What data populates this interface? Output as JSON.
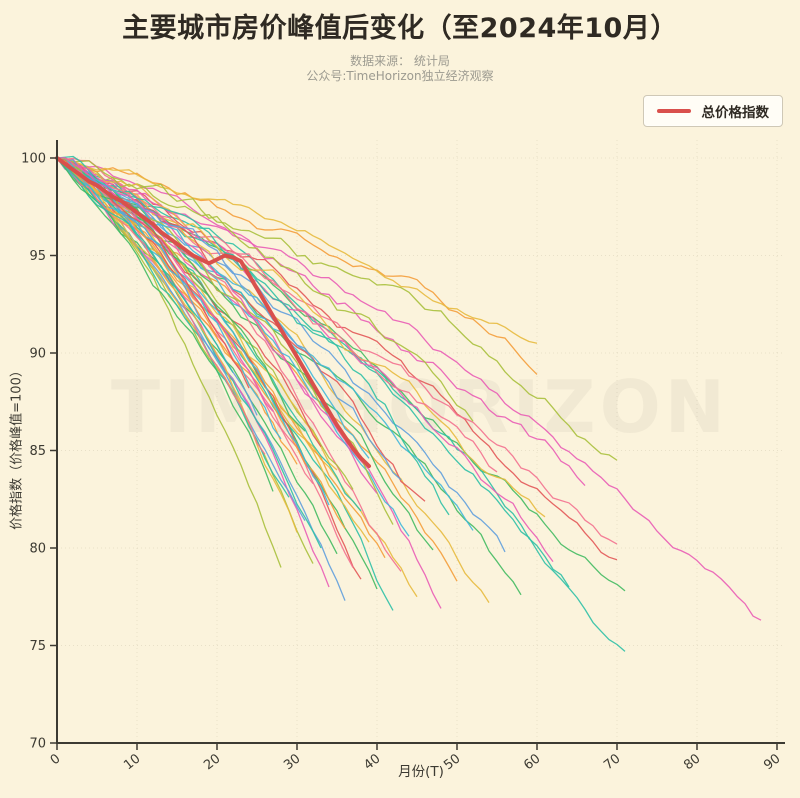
{
  "title": "主要城市房价峰值后变化（至2024年10月）",
  "subtitle_line1": "数据来源： 统计局",
  "subtitle_line2": "公众号:TimeHorizon独立经济观察",
  "watermark": "TIMEHORIZON",
  "legend": {
    "label": "总价格指数"
  },
  "colors": {
    "background": "#fbf3dc",
    "title": "#2f2a23",
    "subtitle": "#9c9a90",
    "axis": "#3c3a32",
    "grid": "#6b6147",
    "main_line": "#d9504c",
    "legend_bg": "#fffdf6",
    "legend_border": "#cfc8b6",
    "watermark": "#3c3a32"
  },
  "chart_data": {
    "type": "line",
    "title": "主要城市房价峰值后变化（至2024年10月）",
    "xlabel": "月份(T)",
    "ylabel": "价格指数（价格峰值=100）",
    "xlim": [
      0,
      90
    ],
    "ylim": [
      70,
      100
    ],
    "xticks": [
      0,
      10,
      20,
      30,
      40,
      50,
      60,
      70,
      80,
      90
    ],
    "yticks": [
      70,
      75,
      80,
      85,
      90,
      95,
      100
    ],
    "grid": true,
    "legend_position": "top-right",
    "main_series": {
      "name": "总价格指数",
      "color": "#d9504c",
      "width": 4,
      "x": [
        0,
        1,
        2,
        3,
        4,
        5,
        6,
        7,
        8,
        9,
        10,
        11,
        12,
        13,
        14,
        15,
        16,
        17,
        18,
        19,
        20,
        21,
        22,
        23,
        24,
        25,
        26,
        27,
        28,
        29,
        30,
        31,
        32,
        33,
        34,
        35,
        36,
        37,
        38,
        39
      ],
      "y": [
        100,
        99.7,
        99.4,
        99.1,
        98.8,
        98.6,
        98.3,
        98.0,
        97.8,
        97.5,
        97.2,
        96.9,
        96.6,
        96.2,
        95.9,
        95.6,
        95.3,
        95.0,
        94.8,
        94.6,
        94.8,
        95.0,
        94.9,
        94.7,
        94.0,
        93.3,
        92.6,
        91.9,
        91.2,
        90.5,
        89.8,
        89.1,
        88.4,
        87.7,
        87.0,
        86.3,
        85.7,
        85.1,
        84.6,
        84.2
      ]
    },
    "city_lines": {
      "description": "Unlabeled per-city price-index curves; each starts at (0,100) and declines with noise to (months, end).",
      "palette": [
        "#e25757",
        "#f49d3a",
        "#e7ba3e",
        "#a9c03c",
        "#41ba60",
        "#2dc0a6",
        "#41b7da",
        "#5f9fdd",
        "#e95cb5",
        "#f3718f"
      ],
      "line_width": 1.3,
      "opacity": 0.9,
      "lines": [
        {
          "s": 11,
          "m": 88,
          "e": 76.3,
          "c": 8,
          "n": 0.45
        },
        {
          "s": 12,
          "m": 71,
          "e": 74.7,
          "c": 5,
          "n": 0.5
        },
        {
          "s": 13,
          "m": 71,
          "e": 77.8,
          "c": 4,
          "n": 0.5
        },
        {
          "s": 14,
          "m": 70,
          "e": 79.4,
          "c": 0,
          "n": 0.55
        },
        {
          "s": 15,
          "m": 70,
          "e": 80.2,
          "c": 9,
          "n": 0.5
        },
        {
          "s": 16,
          "m": 70,
          "e": 84.5,
          "c": 3,
          "n": 0.55
        },
        {
          "s": 17,
          "m": 66,
          "e": 83.2,
          "c": 8,
          "n": 0.6
        },
        {
          "s": 18,
          "m": 64,
          "e": 78.0,
          "c": 5,
          "n": 0.5
        },
        {
          "s": 19,
          "m": 62,
          "e": 79.3,
          "c": 8,
          "n": 0.55
        },
        {
          "s": 20,
          "m": 61,
          "e": 81.6,
          "c": 2,
          "n": 0.6
        },
        {
          "s": 21,
          "m": 60,
          "e": 88.9,
          "c": 1,
          "n": 0.5
        },
        {
          "s": 22,
          "m": 60,
          "e": 90.5,
          "c": 2,
          "n": 0.45
        },
        {
          "s": 23,
          "m": 58,
          "e": 77.6,
          "c": 4,
          "n": 0.5
        },
        {
          "s": 24,
          "m": 56,
          "e": 79.8,
          "c": 7,
          "n": 0.5
        },
        {
          "s": 25,
          "m": 55,
          "e": 83.9,
          "c": 9,
          "n": 0.6
        },
        {
          "s": 26,
          "m": 54,
          "e": 77.2,
          "c": 2,
          "n": 0.5
        },
        {
          "s": 27,
          "m": 52,
          "e": 80.9,
          "c": 6,
          "n": 0.55
        },
        {
          "s": 28,
          "m": 52,
          "e": 86.5,
          "c": 3,
          "n": 0.6
        },
        {
          "s": 29,
          "m": 50,
          "e": 78.3,
          "c": 1,
          "n": 0.5
        },
        {
          "s": 30,
          "m": 49,
          "e": 81.7,
          "c": 5,
          "n": 0.6
        },
        {
          "s": 31,
          "m": 48,
          "e": 76.9,
          "c": 8,
          "n": 0.5
        },
        {
          "s": 32,
          "m": 47,
          "e": 79.9,
          "c": 4,
          "n": 0.55
        },
        {
          "s": 33,
          "m": 46,
          "e": 82.4,
          "c": 0,
          "n": 0.6
        },
        {
          "s": 34,
          "m": 45,
          "e": 77.5,
          "c": 2,
          "n": 0.5
        },
        {
          "s": 35,
          "m": 44,
          "e": 80.6,
          "c": 6,
          "n": 0.55
        },
        {
          "s": 36,
          "m": 43,
          "e": 78.8,
          "c": 9,
          "n": 0.5
        },
        {
          "s": 37,
          "m": 43,
          "e": 83.5,
          "c": 7,
          "n": 0.6
        },
        {
          "s": 38,
          "m": 42,
          "e": 76.8,
          "c": 5,
          "n": 0.5
        },
        {
          "s": 39,
          "m": 42,
          "e": 81.2,
          "c": 3,
          "n": 0.6
        },
        {
          "s": 40,
          "m": 41,
          "e": 79.5,
          "c": 1,
          "n": 0.5
        },
        {
          "s": 41,
          "m": 40,
          "e": 77.9,
          "c": 4,
          "n": 0.5
        },
        {
          "s": 42,
          "m": 40,
          "e": 82.8,
          "c": 8,
          "n": 0.6
        },
        {
          "s": 43,
          "m": 39,
          "e": 80.3,
          "c": 2,
          "n": 0.5
        },
        {
          "s": 44,
          "m": 39,
          "e": 84.6,
          "c": 6,
          "n": 0.6
        },
        {
          "s": 45,
          "m": 38,
          "e": 78.4,
          "c": 0,
          "n": 0.5
        },
        {
          "s": 46,
          "m": 38,
          "e": 81.9,
          "c": 5,
          "n": 0.55
        },
        {
          "s": 47,
          "m": 37,
          "e": 79.0,
          "c": 9,
          "n": 0.5
        },
        {
          "s": 48,
          "m": 37,
          "e": 83.0,
          "c": 3,
          "n": 0.6
        },
        {
          "s": 49,
          "m": 36,
          "e": 77.3,
          "c": 7,
          "n": 0.45
        },
        {
          "s": 50,
          "m": 36,
          "e": 81.0,
          "c": 1,
          "n": 0.55
        },
        {
          "s": 51,
          "m": 35,
          "e": 79.7,
          "c": 4,
          "n": 0.5
        },
        {
          "s": 52,
          "m": 35,
          "e": 84.0,
          "c": 2,
          "n": 0.6
        },
        {
          "s": 53,
          "m": 34,
          "e": 78.0,
          "c": 8,
          "n": 0.45
        },
        {
          "s": 54,
          "m": 34,
          "e": 82.2,
          "c": 6,
          "n": 0.55
        },
        {
          "s": 55,
          "m": 33,
          "e": 80.0,
          "c": 5,
          "n": 0.5
        },
        {
          "s": 56,
          "m": 33,
          "e": 85.2,
          "c": 0,
          "n": 0.6
        },
        {
          "s": 57,
          "m": 32,
          "e": 79.2,
          "c": 3,
          "n": 0.45
        },
        {
          "s": 58,
          "m": 32,
          "e": 83.3,
          "c": 9,
          "n": 0.55
        },
        {
          "s": 59,
          "m": 31,
          "e": 81.4,
          "c": 7,
          "n": 0.5
        },
        {
          "s": 60,
          "m": 31,
          "e": 86.0,
          "c": 4,
          "n": 0.6
        },
        {
          "s": 61,
          "m": 30,
          "e": 80.8,
          "c": 2,
          "n": 0.45
        },
        {
          "s": 62,
          "m": 30,
          "e": 84.3,
          "c": 1,
          "n": 0.55
        },
        {
          "s": 63,
          "m": 29,
          "e": 82.6,
          "c": 5,
          "n": 0.5
        },
        {
          "s": 64,
          "m": 28,
          "e": 79.0,
          "c": 3,
          "n": 0.45
        },
        {
          "s": 65,
          "m": 28,
          "e": 85.6,
          "c": 6,
          "n": 0.55
        },
        {
          "s": 66,
          "m": 27,
          "e": 82.9,
          "c": 4,
          "n": 0.5
        },
        {
          "s": 67,
          "m": 27,
          "e": 87.0,
          "c": 8,
          "n": 0.55
        },
        {
          "s": 68,
          "m": 26,
          "e": 84.8,
          "c": 9,
          "n": 0.5
        },
        {
          "s": 69,
          "m": 25,
          "e": 86.8,
          "c": 7,
          "n": 0.5
        },
        {
          "s": 70,
          "m": 24,
          "e": 88.2,
          "c": 0,
          "n": 0.45
        },
        {
          "s": 71,
          "m": 23,
          "e": 87.5,
          "c": 2,
          "n": 0.5
        },
        {
          "s": 72,
          "m": 22,
          "e": 89.0,
          "c": 5,
          "n": 0.45
        }
      ]
    }
  }
}
